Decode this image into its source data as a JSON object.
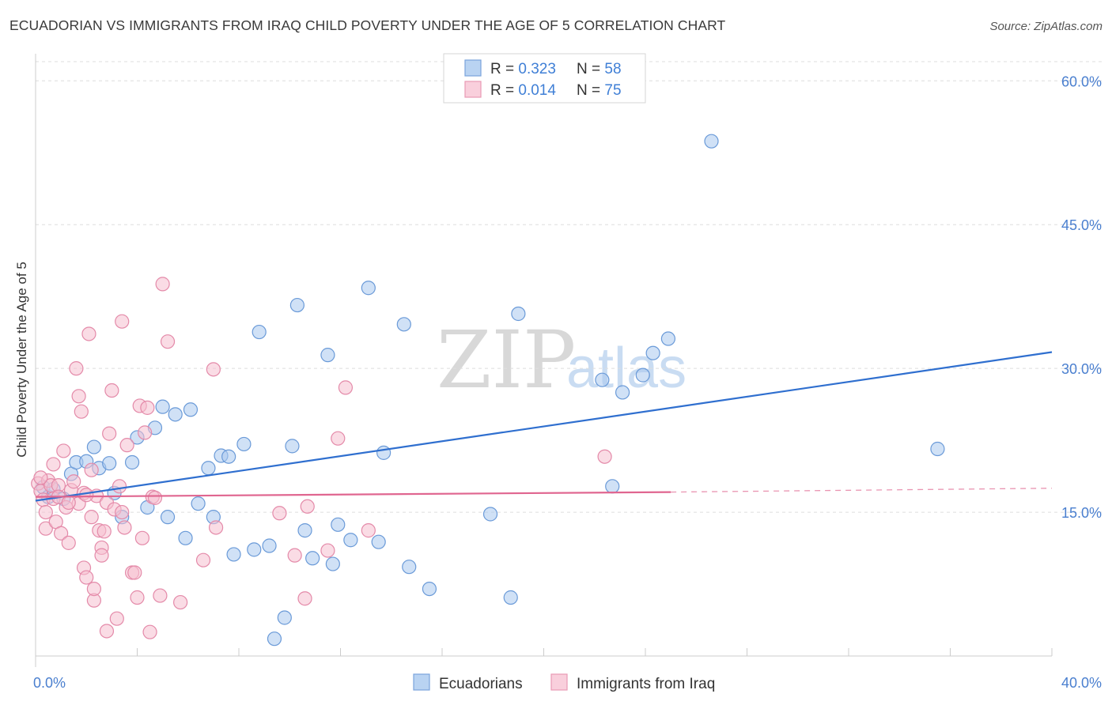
{
  "title": "ECUADORIAN VS IMMIGRANTS FROM IRAQ CHILD POVERTY UNDER THE AGE OF 5 CORRELATION CHART",
  "source": "Source: ZipAtlas.com",
  "watermark": {
    "zip": "ZIP",
    "atlas": "atlas"
  },
  "colors": {
    "blue_fill": "#a9c9ee",
    "blue_stroke": "#6a9ad8",
    "blue_line": "#2f6fcf",
    "pink_fill": "#f6bfd0",
    "pink_stroke": "#e48aa9",
    "pink_line": "#e06690",
    "tick_text": "#4a7fcf",
    "grid": "#dddddd"
  },
  "legend": {
    "rows": [
      {
        "r_label": "R = ",
        "r_value": "0.323",
        "n_label": "N = ",
        "n_value": "58"
      },
      {
        "r_label": "R = ",
        "r_value": "0.014",
        "n_label": "N = ",
        "n_value": "75"
      }
    ]
  },
  "chart_data": {
    "type": "scatter",
    "xlabel": "",
    "ylabel": "Child Poverty Under the Age of 5",
    "xlim": [
      0,
      40
    ],
    "ylim": [
      0,
      62
    ],
    "x_tick_labels": [
      "0.0%",
      "40.0%"
    ],
    "y_ticks": [
      15,
      30,
      45,
      60
    ],
    "y_tick_labels": [
      "15.0%",
      "30.0%",
      "45.0%",
      "60.0%"
    ],
    "grid": true,
    "legend_position": "top-center and bottom-center",
    "series": [
      {
        "name": "Ecuadorians",
        "color": "#a9c9ee",
        "trend": {
          "x": [
            0,
            40
          ],
          "y": [
            16.2,
            31.7
          ]
        },
        "points": [
          [
            0.3,
            17.6
          ],
          [
            0.5,
            16.6
          ],
          [
            0.7,
            17.4
          ],
          [
            1.1,
            16.4
          ],
          [
            1.4,
            19.0
          ],
          [
            1.6,
            20.2
          ],
          [
            2.0,
            20.3
          ],
          [
            2.3,
            21.8
          ],
          [
            2.5,
            19.6
          ],
          [
            2.9,
            20.1
          ],
          [
            3.1,
            17.0
          ],
          [
            3.4,
            14.5
          ],
          [
            3.8,
            20.2
          ],
          [
            4.0,
            22.8
          ],
          [
            4.4,
            15.5
          ],
          [
            4.7,
            23.8
          ],
          [
            5.0,
            26.0
          ],
          [
            5.2,
            14.5
          ],
          [
            5.5,
            25.2
          ],
          [
            5.9,
            12.3
          ],
          [
            6.1,
            25.7
          ],
          [
            6.4,
            15.9
          ],
          [
            6.8,
            19.6
          ],
          [
            7.0,
            14.5
          ],
          [
            7.3,
            20.9
          ],
          [
            7.6,
            20.8
          ],
          [
            7.8,
            10.6
          ],
          [
            8.2,
            22.1
          ],
          [
            8.6,
            11.1
          ],
          [
            8.8,
            33.8
          ],
          [
            9.2,
            11.5
          ],
          [
            9.4,
            1.8
          ],
          [
            9.8,
            4.0
          ],
          [
            10.1,
            21.9
          ],
          [
            10.3,
            36.6
          ],
          [
            10.6,
            13.1
          ],
          [
            10.9,
            10.2
          ],
          [
            11.5,
            31.4
          ],
          [
            11.7,
            9.6
          ],
          [
            11.9,
            13.7
          ],
          [
            12.4,
            12.1
          ],
          [
            13.1,
            38.4
          ],
          [
            13.5,
            11.9
          ],
          [
            13.7,
            21.2
          ],
          [
            14.5,
            34.6
          ],
          [
            14.7,
            9.3
          ],
          [
            15.5,
            7.0
          ],
          [
            17.9,
            14.8
          ],
          [
            18.7,
            6.1
          ],
          [
            19.0,
            35.7
          ],
          [
            22.3,
            28.8
          ],
          [
            22.7,
            17.7
          ],
          [
            23.1,
            27.5
          ],
          [
            23.9,
            29.3
          ],
          [
            24.3,
            31.6
          ],
          [
            24.9,
            33.1
          ],
          [
            26.6,
            53.7
          ],
          [
            35.5,
            21.6
          ]
        ]
      },
      {
        "name": "Immigrants from Iraq",
        "color": "#f6bfd0",
        "trend": {
          "x": [
            0,
            25
          ],
          "y": [
            16.6,
            17.1
          ]
        },
        "trend_dashed": {
          "x": [
            25,
            40
          ],
          "y": [
            17.1,
            17.5
          ]
        },
        "points": [
          [
            0.1,
            18.0
          ],
          [
            0.2,
            17.2
          ],
          [
            0.3,
            16.3
          ],
          [
            0.4,
            15.0
          ],
          [
            0.4,
            13.3
          ],
          [
            0.5,
            18.3
          ],
          [
            0.6,
            17.8
          ],
          [
            0.7,
            16.4
          ],
          [
            0.7,
            20.0
          ],
          [
            0.8,
            14.0
          ],
          [
            0.9,
            17.8
          ],
          [
            1.0,
            12.8
          ],
          [
            1.1,
            21.4
          ],
          [
            1.2,
            15.5
          ],
          [
            1.3,
            11.8
          ],
          [
            1.4,
            17.3
          ],
          [
            1.5,
            18.2
          ],
          [
            1.6,
            30.0
          ],
          [
            1.7,
            15.9
          ],
          [
            1.7,
            27.1
          ],
          [
            1.8,
            25.5
          ],
          [
            1.9,
            17.0
          ],
          [
            1.9,
            9.2
          ],
          [
            2.0,
            8.2
          ],
          [
            2.1,
            33.6
          ],
          [
            2.2,
            14.5
          ],
          [
            2.2,
            19.4
          ],
          [
            2.3,
            5.8
          ],
          [
            2.3,
            7.0
          ],
          [
            2.4,
            16.7
          ],
          [
            2.5,
            13.1
          ],
          [
            2.6,
            11.3
          ],
          [
            2.6,
            10.5
          ],
          [
            2.7,
            13.0
          ],
          [
            2.8,
            16.0
          ],
          [
            2.8,
            2.6
          ],
          [
            2.9,
            23.2
          ],
          [
            3.0,
            27.7
          ],
          [
            3.1,
            15.3
          ],
          [
            3.2,
            3.9
          ],
          [
            3.3,
            17.7
          ],
          [
            3.4,
            34.9
          ],
          [
            3.5,
            13.4
          ],
          [
            3.6,
            22.0
          ],
          [
            3.8,
            8.7
          ],
          [
            3.9,
            8.7
          ],
          [
            4.0,
            6.1
          ],
          [
            4.1,
            26.1
          ],
          [
            4.2,
            12.3
          ],
          [
            4.3,
            23.3
          ],
          [
            4.4,
            25.9
          ],
          [
            4.5,
            2.5
          ],
          [
            4.6,
            16.6
          ],
          [
            4.9,
            6.3
          ],
          [
            5.0,
            38.8
          ],
          [
            5.2,
            32.8
          ],
          [
            5.7,
            5.6
          ],
          [
            6.6,
            10.0
          ],
          [
            7.0,
            29.9
          ],
          [
            7.1,
            13.4
          ],
          [
            9.6,
            14.9
          ],
          [
            10.2,
            10.5
          ],
          [
            10.6,
            6.0
          ],
          [
            10.7,
            15.6
          ],
          [
            11.5,
            11.0
          ],
          [
            11.9,
            22.7
          ],
          [
            12.2,
            28.0
          ],
          [
            13.1,
            13.1
          ],
          [
            22.4,
            20.8
          ],
          [
            0.2,
            18.6
          ],
          [
            0.9,
            16.6
          ],
          [
            1.3,
            16.0
          ],
          [
            2.0,
            16.8
          ],
          [
            3.4,
            15.0
          ],
          [
            4.7,
            16.5
          ]
        ]
      }
    ]
  }
}
